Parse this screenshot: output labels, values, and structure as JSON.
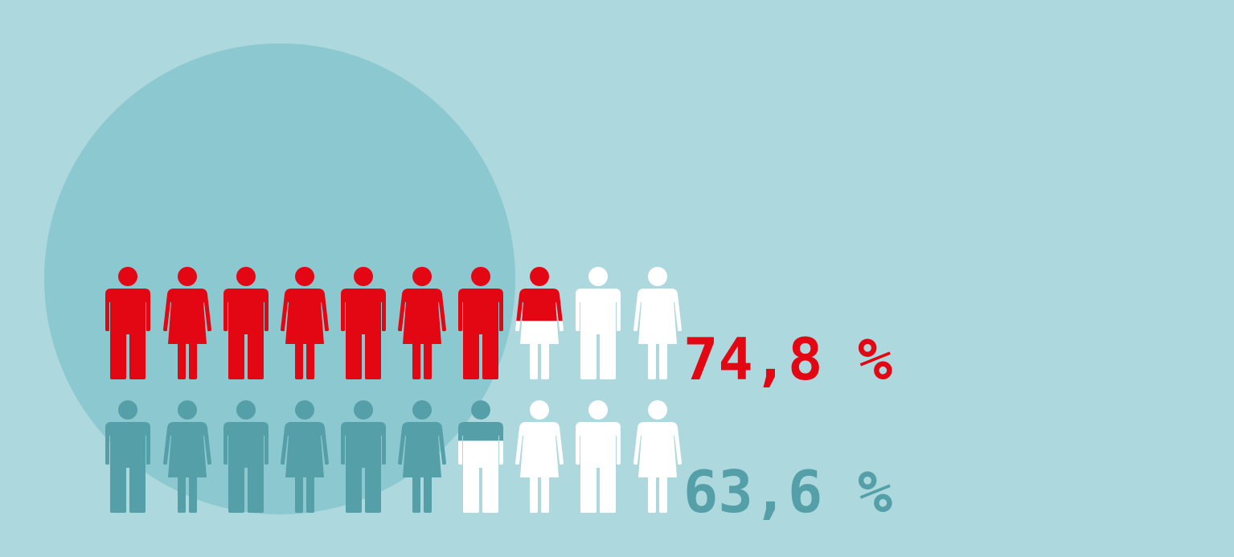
{
  "colors": {
    "background": "#acd8de",
    "circle": "#8cc8d0",
    "empty": "#ffffff"
  },
  "chart_data": {
    "type": "pictogram",
    "icons_per_row": 10,
    "icon_pattern": [
      "man",
      "woman",
      "man",
      "woman",
      "man",
      "woman",
      "man",
      "woman",
      "man",
      "woman"
    ],
    "series": [
      {
        "value": 74.8,
        "label": "74,8 %",
        "color": "#e30613",
        "icon_pattern": [
          "man",
          "woman",
          "man",
          "woman",
          "man",
          "woman",
          "man",
          "woman",
          "man",
          "woman"
        ]
      },
      {
        "value": 63.6,
        "label": "63,6 %",
        "color": "#55a0a8",
        "icon_pattern": [
          "man",
          "woman",
          "man",
          "woman",
          "man",
          "woman",
          "man",
          "woman",
          "man",
          "woman"
        ]
      }
    ]
  }
}
